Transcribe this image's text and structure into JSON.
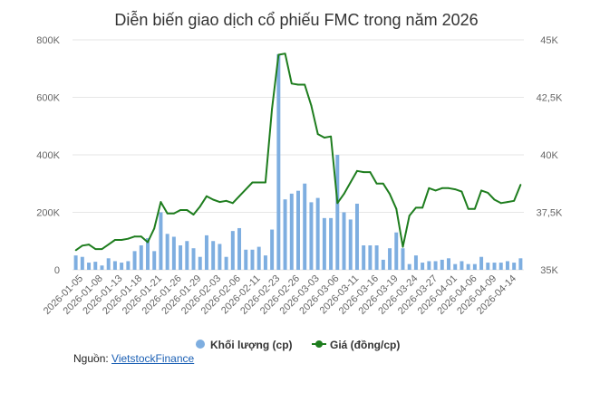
{
  "chart_data": {
    "type": "bar+line",
    "title": "Diễn biến giao dịch cổ phiếu FMC trong năm 2026",
    "left_axis": {
      "ticks": [
        0,
        200000,
        400000,
        600000,
        800000
      ],
      "tick_labels": [
        "0",
        "200K",
        "400K",
        "600K",
        "800K"
      ],
      "ylim": [
        0,
        800000
      ]
    },
    "right_axis": {
      "ticks": [
        35000,
        37500,
        40000,
        42500,
        45000
      ],
      "tick_labels": [
        "35K",
        "37,5K",
        "40K",
        "42,5K",
        "45K"
      ],
      "ylim": [
        35000,
        45000
      ]
    },
    "x_tick_labels": [
      "2026-01-05",
      "2026-01-08",
      "2026-01-13",
      "2026-01-18",
      "2026-01-21",
      "2026-01-26",
      "2026-01-29",
      "2026-02-03",
      "2026-02-06",
      "2026-02-11",
      "2026-02-23",
      "2026-02-26",
      "2026-03-03",
      "2026-03-06",
      "2026-03-11",
      "2026-03-16",
      "2026-03-19",
      "2026-03-24",
      "2026-03-27",
      "2026-04-01",
      "2026-04-06",
      "2026-04-09",
      "2026-04-14"
    ],
    "grid": true,
    "legend_position": "bottom",
    "series": [
      {
        "name": "Khối lượng (cp)",
        "kind": "bar",
        "axis": "left",
        "color": "#7eaee0",
        "values": [
          50000,
          45000,
          25000,
          28000,
          15000,
          40000,
          30000,
          25000,
          30000,
          65000,
          85000,
          110000,
          65000,
          200000,
          125000,
          115000,
          85000,
          100000,
          75000,
          45000,
          120000,
          100000,
          90000,
          45000,
          135000,
          145000,
          70000,
          70000,
          80000,
          50000,
          140000,
          750000,
          245000,
          265000,
          275000,
          300000,
          235000,
          250000,
          180000,
          180000,
          400000,
          200000,
          175000,
          230000,
          85000,
          85000,
          85000,
          35000,
          75000,
          130000,
          75000,
          20000,
          50000,
          25000,
          30000,
          30000,
          35000,
          40000,
          20000,
          30000,
          20000,
          20000,
          45000,
          25000,
          25000,
          25000,
          30000,
          25000,
          40000
        ]
      },
      {
        "name": "Giá (đồng/cp)",
        "kind": "line",
        "axis": "right",
        "color": "#1e7d1e",
        "values": [
          35850,
          36050,
          36100,
          35900,
          35900,
          36100,
          36300,
          36300,
          36350,
          36450,
          36450,
          36200,
          36800,
          37950,
          37450,
          37450,
          37600,
          37600,
          37400,
          37750,
          38200,
          38050,
          37950,
          38000,
          37900,
          38200,
          38500,
          38800,
          38800,
          38800,
          42000,
          44350,
          44400,
          43100,
          43050,
          43050,
          42150,
          40900,
          40750,
          40800,
          37900,
          38300,
          38800,
          39300,
          39250,
          39250,
          38750,
          38750,
          38300,
          37650,
          36000,
          37350,
          37700,
          37700,
          38550,
          38450,
          38550,
          38550,
          38500,
          38400,
          37650,
          37650,
          38450,
          38350,
          38050,
          37900,
          37950,
          38000,
          38700
        ]
      }
    ]
  },
  "source": {
    "label": "Nguồn:",
    "name": "VietstockFinance"
  },
  "colors": {
    "grid": "#e6e6e6",
    "axis_text": "#666666",
    "title": "#333333"
  }
}
